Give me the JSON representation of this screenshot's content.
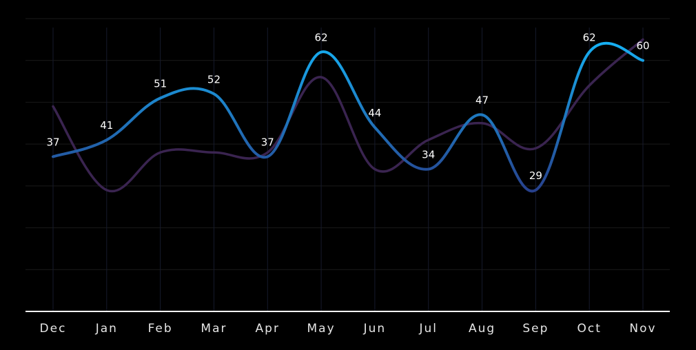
{
  "chart_data": {
    "type": "line",
    "categories": [
      "Dec",
      "Jan",
      "Feb",
      "Mar",
      "Apr",
      "May",
      "Jun",
      "Jul",
      "Aug",
      "Sep",
      "Oct",
      "Nov"
    ],
    "ylim": [
      0,
      70
    ],
    "grid": true,
    "legend": "none",
    "series": [
      {
        "color": "#1a9fe6",
        "values": [
          37,
          41,
          51,
          52,
          37,
          62,
          44,
          34,
          47,
          29,
          62,
          60
        ],
        "labels": [
          "37",
          "41",
          "51",
          "52",
          "37",
          "62",
          "44",
          "34",
          "47",
          "29",
          "62",
          "60"
        ]
      },
      {
        "color": "#3a2450",
        "values": [
          49,
          29,
          38,
          38,
          38,
          56,
          34,
          41,
          45,
          39,
          54,
          65
        ]
      }
    ]
  }
}
